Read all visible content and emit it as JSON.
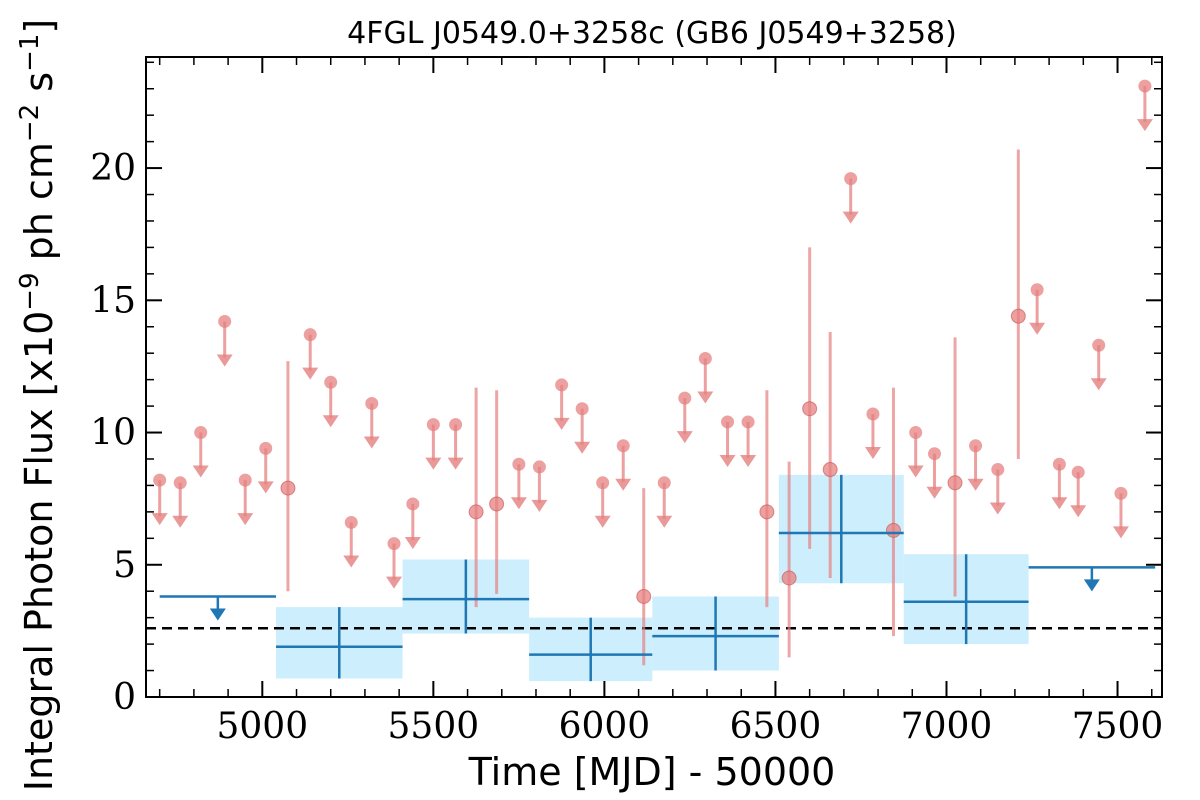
{
  "chart_data": {
    "type": "scatter",
    "title": "4FGL J0549.0+3258c (GB6 J0549+3258)",
    "xlabel": "Time [MJD] - 50000",
    "ylabel": "Integral Photon Flux [x10",
    "ylabel_exp1": "−9",
    "ylabel_mid": " ph cm",
    "ylabel_exp2": "−2",
    "ylabel_s": " s",
    "ylabel_exp3": "−1",
    "ylabel_end": "]",
    "xlim": [
      4660,
      7630
    ],
    "ylim": [
      0,
      24.2
    ],
    "xticks": [
      5000,
      5500,
      6000,
      6500,
      7000,
      7500
    ],
    "yticks": [
      0,
      5,
      10,
      15,
      20
    ],
    "average_flux": 2.6,
    "colors": {
      "red": "#e58080",
      "blue": "#1f77b4",
      "band": "#cdeefc",
      "average_line": "#000000"
    },
    "monthly_upper_limits": [
      {
        "x": 4700,
        "y": 8.2
      },
      {
        "x": 4760,
        "y": 8.1
      },
      {
        "x": 4820,
        "y": 10.0
      },
      {
        "x": 4890,
        "y": 14.2
      },
      {
        "x": 4950,
        "y": 8.2
      },
      {
        "x": 5010,
        "y": 9.4
      },
      {
        "x": 5140,
        "y": 13.7
      },
      {
        "x": 5200,
        "y": 11.9
      },
      {
        "x": 5260,
        "y": 6.6
      },
      {
        "x": 5320,
        "y": 11.1
      },
      {
        "x": 5385,
        "y": 5.8
      },
      {
        "x": 5440,
        "y": 7.3
      },
      {
        "x": 5500,
        "y": 10.3
      },
      {
        "x": 5565,
        "y": 10.3
      },
      {
        "x": 5750,
        "y": 8.8
      },
      {
        "x": 5810,
        "y": 8.7
      },
      {
        "x": 5875,
        "y": 11.8
      },
      {
        "x": 5935,
        "y": 10.9
      },
      {
        "x": 5995,
        "y": 8.1
      },
      {
        "x": 6055,
        "y": 9.5
      },
      {
        "x": 6175,
        "y": 8.1
      },
      {
        "x": 6235,
        "y": 11.3
      },
      {
        "x": 6295,
        "y": 12.8
      },
      {
        "x": 6360,
        "y": 10.4
      },
      {
        "x": 6420,
        "y": 10.4
      },
      {
        "x": 6720,
        "y": 19.6
      },
      {
        "x": 6785,
        "y": 10.7
      },
      {
        "x": 6910,
        "y": 10.0
      },
      {
        "x": 6965,
        "y": 9.2
      },
      {
        "x": 7085,
        "y": 9.5
      },
      {
        "x": 7150,
        "y": 8.6
      },
      {
        "x": 7265,
        "y": 15.4
      },
      {
        "x": 7330,
        "y": 8.8
      },
      {
        "x": 7385,
        "y": 8.5
      },
      {
        "x": 7445,
        "y": 13.3
      },
      {
        "x": 7510,
        "y": 7.7
      },
      {
        "x": 7580,
        "y": 23.1
      }
    ],
    "monthly_detections": [
      {
        "x": 5075,
        "y": 7.9,
        "ylo": 4.0,
        "yhi": 12.7
      },
      {
        "x": 5625,
        "y": 7.0,
        "ylo": 3.4,
        "yhi": 11.7
      },
      {
        "x": 5685,
        "y": 7.3,
        "ylo": 3.9,
        "yhi": 11.6
      },
      {
        "x": 6115,
        "y": 3.8,
        "ylo": 1.2,
        "yhi": 7.9
      },
      {
        "x": 6475,
        "y": 7.0,
        "ylo": 3.4,
        "yhi": 11.6
      },
      {
        "x": 6540,
        "y": 4.5,
        "ylo": 1.5,
        "yhi": 8.9
      },
      {
        "x": 6600,
        "y": 10.9,
        "ylo": 5.6,
        "yhi": 17.0
      },
      {
        "x": 6660,
        "y": 8.6,
        "ylo": 4.5,
        "yhi": 13.8
      },
      {
        "x": 6845,
        "y": 6.3,
        "ylo": 2.3,
        "yhi": 11.7
      },
      {
        "x": 7025,
        "y": 8.1,
        "ylo": 3.8,
        "yhi": 13.6
      },
      {
        "x": 7210,
        "y": 14.4,
        "ylo": 9.0,
        "yhi": 20.7
      }
    ],
    "yearly_upper_limits": [
      {
        "x0": 4700,
        "x1": 5040,
        "y": 3.8
      },
      {
        "x0": 7240,
        "x1": 7610,
        "y": 4.9
      }
    ],
    "yearly_detections": [
      {
        "x0": 5040,
        "x1": 5410,
        "y": 1.9,
        "ylo": 0.7,
        "yhi": 3.4
      },
      {
        "x0": 5410,
        "x1": 5780,
        "y": 3.7,
        "ylo": 2.4,
        "yhi": 5.2
      },
      {
        "x0": 5780,
        "x1": 6140,
        "y": 1.6,
        "ylo": 0.6,
        "yhi": 3.0
      },
      {
        "x0": 6140,
        "x1": 6510,
        "y": 2.3,
        "ylo": 1.0,
        "yhi": 3.8
      },
      {
        "x0": 6510,
        "x1": 6875,
        "y": 6.2,
        "ylo": 4.3,
        "yhi": 8.4
      },
      {
        "x0": 6875,
        "x1": 7240,
        "y": 3.6,
        "ylo": 2.0,
        "yhi": 5.4
      }
    ]
  }
}
